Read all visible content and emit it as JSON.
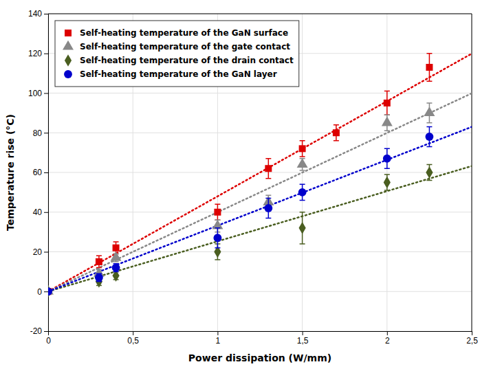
{
  "chart_data": {
    "type": "scatter",
    "x_label": "Power dissipation (W/mm)",
    "y_label": "Temperature rise (°C)",
    "xlim": [
      0,
      2.5
    ],
    "ylim": [
      -20,
      140
    ],
    "xticks": [
      0,
      {
        "value": 0.5,
        "label": "0,5"
      },
      1,
      {
        "value": 1.5,
        "label": "1,5"
      },
      2,
      {
        "value": 2.5,
        "label": "2,5"
      }
    ],
    "yticks": [
      -20,
      0,
      20,
      40,
      60,
      80,
      100,
      120,
      140
    ],
    "grid": true,
    "legend": "upper left",
    "series": [
      {
        "name": "Self-heating temperature of the GaN surface",
        "color": "#dd0000",
        "marker": "square",
        "line_style": "dotted",
        "x": [
          0.0,
          0.3,
          0.4,
          1.0,
          1.3,
          1.5,
          1.7,
          2.0,
          2.25
        ],
        "values": [
          0.0,
          15.0,
          22.0,
          40.0,
          62.0,
          72.0,
          80.0,
          95.0,
          113.0
        ],
        "yerr": [
          0.5,
          3.0,
          3.0,
          4.0,
          5.0,
          4.0,
          4.0,
          6.0,
          7.0
        ],
        "trend_x": [
          0,
          2.5
        ],
        "trend_values": [
          0,
          119.8994
        ]
      },
      {
        "name": "Self-heating temperature of the gate contact",
        "color": "#888888",
        "marker": "triangle",
        "line_style": "dotted",
        "x": [
          0.0,
          0.3,
          0.4,
          1.0,
          1.3,
          1.5,
          2.0,
          2.25
        ],
        "values": [
          0.0,
          9.0,
          17.0,
          33.0,
          45.0,
          64.0,
          85.0,
          90.0
        ],
        "yerr": [
          0.5,
          2.0,
          2.0,
          3.0,
          3.5,
          3.0,
          4.0,
          5.0
        ],
        "trend_x": [
          0,
          2.5
        ],
        "trend_values": [
          0,
          99.8948
        ]
      },
      {
        "name": "Self-heating temperature of the drain contact",
        "color": "#4a5e20",
        "marker": "diamond",
        "line_style": "dotted",
        "x": [
          0.0,
          0.3,
          0.4,
          1.0,
          1.5,
          2.0,
          2.25
        ],
        "values": [
          0.0,
          5.0,
          8.0,
          20.0,
          32.0,
          55.0,
          60.0
        ],
        "yerr": [
          0.5,
          2.0,
          2.0,
          4.0,
          8.0,
          4.0,
          4.0
        ],
        "trend_x": [
          0,
          2.5
        ],
        "trend_values": [
          0,
          63.2239
        ]
      },
      {
        "name": "Self-heating temperature of the GaN layer",
        "color": "#0000cc",
        "marker": "circle",
        "line_style": "dotted",
        "x": [
          0.0,
          0.3,
          0.4,
          1.0,
          1.3,
          1.5,
          2.0,
          2.25
        ],
        "values": [
          0.0,
          7.0,
          12.0,
          27.0,
          42.0,
          50.0,
          67.0,
          78.0
        ],
        "yerr": [
          0.5,
          2.0,
          2.0,
          5.0,
          5.0,
          4.0,
          5.0,
          5.0
        ],
        "trend_x": [
          0,
          2.5
        ],
        "trend_values": [
          0,
          82.9679
        ]
      }
    ]
  }
}
